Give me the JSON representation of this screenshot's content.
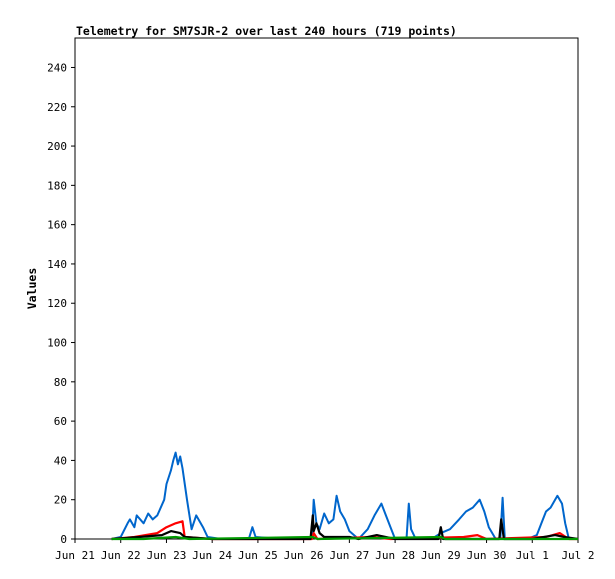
{
  "chart_data": {
    "type": "line",
    "title": "Telemetry for SM7SJR-2 over last 240 hours (719 points)",
    "xlabel": "",
    "ylabel": "Values",
    "xlim": [
      "Jun 21",
      "Jul 2"
    ],
    "ylim": [
      0,
      255
    ],
    "x_ticks": [
      "Jun 21",
      "Jun 22",
      "Jun 23",
      "Jun 24",
      "Jun 25",
      "Jun 26",
      "Jun 27",
      "Jun 28",
      "Jun 29",
      "Jun 30",
      "Jul 1",
      "Jul 2"
    ],
    "y_ticks": [
      0,
      20,
      40,
      60,
      80,
      100,
      120,
      140,
      160,
      180,
      200,
      220,
      240
    ],
    "grid": false,
    "legend": "none",
    "series": [
      {
        "color": "#0066cc",
        "points": [
          [
            0.8,
            0
          ],
          [
            1.0,
            1
          ],
          [
            1.15,
            8
          ],
          [
            1.2,
            10
          ],
          [
            1.3,
            6
          ],
          [
            1.35,
            12
          ],
          [
            1.5,
            8
          ],
          [
            1.6,
            13
          ],
          [
            1.7,
            10
          ],
          [
            1.8,
            12
          ],
          [
            1.95,
            20
          ],
          [
            2.0,
            28
          ],
          [
            2.1,
            35
          ],
          [
            2.15,
            40
          ],
          [
            2.2,
            44
          ],
          [
            2.25,
            38
          ],
          [
            2.3,
            42
          ],
          [
            2.35,
            36
          ],
          [
            2.45,
            20
          ],
          [
            2.55,
            5
          ],
          [
            2.65,
            12
          ],
          [
            2.8,
            6
          ],
          [
            2.9,
            1
          ],
          [
            3.2,
            0
          ],
          [
            3.8,
            0
          ],
          [
            3.88,
            6
          ],
          [
            3.95,
            1
          ],
          [
            4.5,
            0
          ],
          [
            5.0,
            0
          ],
          [
            5.18,
            0
          ],
          [
            5.22,
            20
          ],
          [
            5.28,
            8
          ],
          [
            5.35,
            5
          ],
          [
            5.45,
            13
          ],
          [
            5.55,
            8
          ],
          [
            5.65,
            10
          ],
          [
            5.72,
            22
          ],
          [
            5.8,
            14
          ],
          [
            5.9,
            10
          ],
          [
            6.0,
            4
          ],
          [
            6.2,
            0
          ],
          [
            6.4,
            5
          ],
          [
            6.55,
            12
          ],
          [
            6.7,
            18
          ],
          [
            6.8,
            12
          ],
          [
            6.9,
            6
          ],
          [
            7.0,
            0
          ],
          [
            7.25,
            0
          ],
          [
            7.3,
            18
          ],
          [
            7.35,
            5
          ],
          [
            7.45,
            0
          ],
          [
            7.8,
            0
          ],
          [
            8.0,
            3
          ],
          [
            8.2,
            5
          ],
          [
            8.4,
            10
          ],
          [
            8.55,
            14
          ],
          [
            8.7,
            16
          ],
          [
            8.85,
            20
          ],
          [
            8.95,
            14
          ],
          [
            9.05,
            6
          ],
          [
            9.2,
            0
          ],
          [
            9.3,
            0
          ],
          [
            9.35,
            21
          ],
          [
            9.4,
            0
          ],
          [
            9.9,
            0
          ],
          [
            10.1,
            2
          ],
          [
            10.2,
            8
          ],
          [
            10.3,
            14
          ],
          [
            10.4,
            16
          ],
          [
            10.5,
            20
          ],
          [
            10.55,
            22
          ],
          [
            10.65,
            18
          ],
          [
            10.72,
            8
          ],
          [
            10.8,
            0
          ],
          [
            11.0,
            0
          ]
        ]
      },
      {
        "color": "#ff0000",
        "points": [
          [
            0.8,
            0
          ],
          [
            1.3,
            1
          ],
          [
            1.8,
            3
          ],
          [
            2.0,
            6
          ],
          [
            2.2,
            8
          ],
          [
            2.35,
            9
          ],
          [
            2.4,
            1
          ],
          [
            3.0,
            0
          ],
          [
            5.18,
            0
          ],
          [
            5.22,
            3
          ],
          [
            5.3,
            0
          ],
          [
            6.5,
            1
          ],
          [
            6.9,
            0
          ],
          [
            8.5,
            1
          ],
          [
            8.8,
            2
          ],
          [
            9.0,
            0
          ],
          [
            10.3,
            1
          ],
          [
            10.6,
            3
          ],
          [
            10.8,
            0
          ],
          [
            11.0,
            0
          ]
        ]
      },
      {
        "color": "#000000",
        "points": [
          [
            0.8,
            0
          ],
          [
            1.4,
            1
          ],
          [
            1.9,
            2
          ],
          [
            2.1,
            4
          ],
          [
            2.3,
            3
          ],
          [
            2.4,
            1
          ],
          [
            3.0,
            0
          ],
          [
            5.15,
            0
          ],
          [
            5.2,
            12
          ],
          [
            5.22,
            4
          ],
          [
            5.28,
            8
          ],
          [
            5.35,
            3
          ],
          [
            5.45,
            1
          ],
          [
            6.0,
            1
          ],
          [
            6.2,
            0
          ],
          [
            6.6,
            2
          ],
          [
            7.0,
            0
          ],
          [
            7.95,
            0
          ],
          [
            8.0,
            6
          ],
          [
            8.05,
            0
          ],
          [
            9.28,
            0
          ],
          [
            9.32,
            10
          ],
          [
            9.38,
            0
          ],
          [
            10.0,
            0
          ],
          [
            10.5,
            2
          ],
          [
            10.7,
            1
          ],
          [
            11.0,
            0
          ]
        ]
      },
      {
        "color": "#009900",
        "points": [
          [
            0.8,
            0
          ],
          [
            1.5,
            0
          ],
          [
            2.2,
            1
          ],
          [
            2.5,
            0
          ],
          [
            5.2,
            1
          ],
          [
            5.3,
            0
          ],
          [
            8.0,
            1
          ],
          [
            8.1,
            0
          ],
          [
            11.0,
            0
          ]
        ]
      }
    ]
  }
}
